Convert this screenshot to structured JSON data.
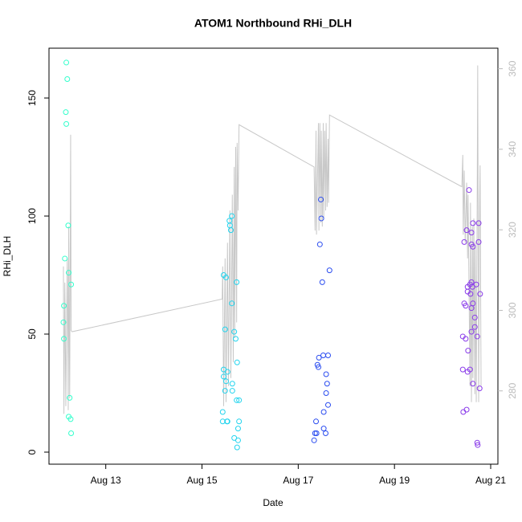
{
  "chart_data": {
    "type": "scatter",
    "title": "ATOM1 Northbound RHi_DLH",
    "x_label": "Date",
    "y_label": "RHi_DLH",
    "xlim": [
      11.82,
      21.15
    ],
    "ylim": [
      -5.1,
      171.1
    ],
    "y2lim": [
      261.8,
      365.1
    ],
    "xticks": [
      {
        "value": 13,
        "label": "Aug 13"
      },
      {
        "value": 15,
        "label": "Aug 15"
      },
      {
        "value": 17,
        "label": "Aug 17"
      },
      {
        "value": 19,
        "label": "Aug 19"
      },
      {
        "value": 21,
        "label": "Aug 21"
      }
    ],
    "yticks": [
      0,
      50,
      100,
      150
    ],
    "y2ticks": [
      280,
      300,
      320,
      340,
      360
    ],
    "series": [
      {
        "type": "scatter",
        "color": "#33ffcc",
        "x": [
          12.18,
          12.2,
          12.17,
          12.18,
          12.22,
          12.15,
          12.23,
          12.28,
          12.13,
          12.12,
          12.13,
          12.25,
          12.23,
          12.27,
          12.28
        ],
        "values": [
          165,
          158,
          144,
          139,
          96,
          82,
          76,
          71,
          62,
          55,
          48,
          23,
          15,
          14,
          8
        ]
      },
      {
        "type": "scatter",
        "color": "#22d4ee",
        "x": [
          15.62,
          15.57,
          15.58,
          15.6,
          15.45,
          15.5,
          15.72,
          15.62,
          15.67,
          15.7,
          15.48,
          15.73,
          15.45,
          15.53,
          15.45,
          15.5,
          15.63,
          15.63,
          15.48,
          15.77,
          15.72,
          15.43,
          15.43,
          15.52,
          15.53,
          15.77,
          15.75,
          15.67,
          15.75,
          15.73
        ],
        "values": [
          100,
          98,
          96,
          94,
          75,
          74,
          72,
          63,
          51,
          48,
          52,
          38,
          35,
          34,
          32,
          30,
          29,
          26,
          26,
          22,
          22,
          17,
          13,
          13,
          13,
          13,
          10,
          6,
          5,
          2
        ]
      },
      {
        "type": "scatter",
        "color": "#2a4cf0",
        "x": [
          17.47,
          17.48,
          17.45,
          17.65,
          17.5,
          17.62,
          17.52,
          17.43,
          17.4,
          17.42,
          17.58,
          17.6,
          17.58,
          17.62,
          17.53,
          17.37,
          17.53,
          17.38,
          17.35,
          17.57,
          17.33
        ],
        "values": [
          107,
          99,
          88,
          77,
          72,
          41,
          41,
          40,
          37,
          36,
          33,
          29,
          25,
          20,
          17,
          13,
          10,
          8,
          8,
          8,
          5
        ]
      },
      {
        "type": "scatter",
        "color": "#8a3bea",
        "x": [
          20.55,
          20.63,
          20.75,
          20.5,
          20.6,
          20.45,
          20.75,
          20.6,
          20.63,
          20.57,
          20.6,
          20.7,
          20.52,
          20.62,
          20.52,
          20.78,
          20.58,
          20.45,
          20.48,
          20.63,
          20.6,
          20.67,
          20.67,
          20.6,
          20.72,
          20.42,
          20.48,
          20.53,
          20.57,
          20.42,
          20.52,
          20.63,
          20.77,
          20.5,
          20.43,
          20.72,
          20.73
        ],
        "values": [
          111,
          97,
          97,
          94,
          93,
          89,
          89,
          88,
          87,
          71,
          72,
          71,
          70,
          70,
          68,
          67,
          67,
          63,
          62,
          63,
          61,
          57,
          53,
          51,
          49,
          49,
          48,
          43,
          35,
          35,
          34,
          29,
          27,
          18,
          17,
          4,
          3
        ]
      },
      {
        "type": "line",
        "axis": "y2",
        "color": "#c8c8c8",
        "x": [
          12.12,
          12.13,
          12.15,
          12.17,
          12.2,
          12.22,
          12.23,
          12.25,
          12.27,
          12.28,
          12.3,
          15.42,
          15.43,
          15.45,
          15.48,
          15.5,
          15.53,
          15.55,
          15.58,
          15.6,
          15.63,
          15.65,
          15.67,
          15.68,
          15.7,
          15.72,
          15.73,
          15.75,
          15.77,
          17.33,
          17.35,
          17.37,
          17.38,
          17.42,
          17.43,
          17.45,
          17.47,
          17.48,
          17.5,
          17.52,
          17.53,
          17.55,
          17.57,
          17.58,
          17.6,
          17.62,
          17.63,
          17.65,
          20.4,
          20.42,
          20.43,
          20.45,
          20.47,
          20.5,
          20.52,
          20.53,
          20.57,
          20.58,
          20.6,
          20.62,
          20.63,
          20.65,
          20.67,
          20.68,
          20.7,
          20.72,
          20.73,
          20.75,
          20.77,
          20.78,
          20.8
        ],
        "values": [
          310.9,
          274.3,
          306.9,
          276.2,
          312.9,
          275.2,
          320.8,
          278.2,
          343.6,
          295.0,
          294.7,
          302.8,
          310.9,
          276.2,
          312.9,
          277.2,
          316.8,
          281.2,
          324.8,
          283.2,
          328.7,
          287.1,
          335.6,
          293.1,
          340.6,
          297.0,
          341.6,
          324.8,
          346.1,
          335.6,
          319.8,
          344.6,
          318.8,
          346.5,
          319.8,
          346.5,
          321.8,
          344.6,
          320.8,
          346.5,
          322.8,
          344.6,
          324.8,
          346.5,
          325.7,
          342.6,
          326.7,
          348.5,
          330.7,
          338.6,
          318.8,
          334.7,
          316.8,
          331.7,
          312.9,
          328.7,
          281.2,
          326.7,
          277.2,
          320.8,
          283.2,
          322.8,
          279.2,
          316.8,
          277.2,
          328.7,
          360.8,
          277.2,
          326.7,
          336.0,
          281.2
        ]
      }
    ]
  }
}
